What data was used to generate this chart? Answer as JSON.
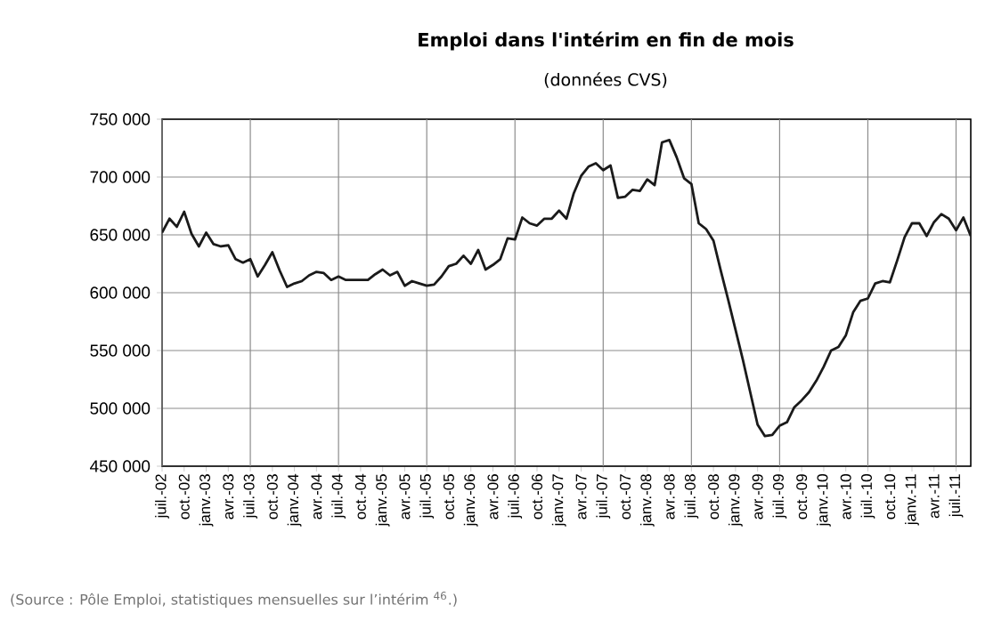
{
  "chart_data": {
    "type": "line",
    "title": "Emploi dans l'intérim en fin de mois",
    "subtitle": "(données CVS)",
    "annotations": [
      "(Source : Pôle Emploi, statistiques mensuelles sur l’intérim $^{46}$.)"
    ],
    "categories": [
      "juil.-02",
      null,
      null,
      "oct.-02",
      null,
      null,
      "janv.-03",
      null,
      null,
      "avr.-03",
      null,
      null,
      "juil.-03",
      null,
      null,
      "oct.-03",
      null,
      null,
      "janv.-04",
      null,
      null,
      "avr.-04",
      null,
      null,
      "juil.-04",
      null,
      null,
      "oct.-04",
      null,
      null,
      "janv.-05",
      null,
      null,
      "avr.-05",
      null,
      null,
      "juil.-05",
      null,
      null,
      "oct.-05",
      null,
      null,
      "janv.-06",
      null,
      null,
      "avr.-06",
      null,
      null,
      "juil.-06",
      null,
      null,
      "oct.-06",
      null,
      null,
      "janv.-07",
      null,
      null,
      "avr.-07",
      null,
      null,
      "juil.-07",
      null,
      null,
      "oct.-07",
      null,
      null,
      "janv.-08",
      null,
      null,
      "avr.-08",
      null,
      null,
      "juil.-08",
      null,
      null,
      "oct.-08",
      null,
      null,
      "janv.-09",
      null,
      null,
      "avr.-09",
      null,
      null,
      "juil.-09",
      null,
      null,
      "oct.-09",
      null,
      null,
      "janv.-10",
      null,
      null,
      "avr.-10",
      null,
      null,
      "juil.-10",
      null,
      null,
      "oct.-10",
      null,
      null,
      "janv.-11",
      null,
      null,
      "avr.-11",
      null,
      null,
      "juil.-11",
      null,
      null
    ],
    "series": [
      {
        "color": "#1a1a1a",
        "values": [
          652000,
          664000,
          657000,
          670000,
          651000,
          640000,
          652000,
          642000,
          640000,
          641000,
          629000,
          626000,
          629000,
          614000,
          624000,
          635000,
          619000,
          605000,
          608000,
          610000,
          615000,
          618000,
          617000,
          611000,
          614000,
          611000,
          611000,
          611000,
          611000,
          616000,
          620000,
          615000,
          618000,
          606000,
          610000,
          608000,
          606000,
          607000,
          614000,
          623000,
          625000,
          632000,
          625000,
          637000,
          620000,
          624000,
          629000,
          647000,
          646000,
          665000,
          660000,
          658000,
          664000,
          664000,
          671000,
          664000,
          686000,
          701000,
          709000,
          712000,
          706000,
          710000,
          682000,
          683000,
          689000,
          688000,
          698000,
          693000,
          730000,
          732000,
          717000,
          699000,
          694000,
          660000,
          655000,
          645000,
          619000,
          594000,
          568000,
          542000,
          514000,
          486000,
          476000,
          477000,
          485000,
          488000,
          501000,
          507000,
          514000,
          524000,
          536000,
          550000,
          553000,
          563000,
          583000,
          593000,
          595000,
          608000,
          610000,
          609000,
          628000,
          648000,
          660000,
          660000,
          649000,
          661000,
          668000,
          664000,
          654000,
          665000,
          649000
        ]
      }
    ],
    "ylim": [
      450000,
      750000
    ],
    "yticks": [
      {
        "value": 450000,
        "label": "450 000"
      },
      {
        "value": 500000,
        "label": "500 000"
      },
      {
        "value": 550000,
        "label": "550 000"
      },
      {
        "value": 600000,
        "label": "600 000"
      },
      {
        "value": 650000,
        "label": "650 000"
      },
      {
        "value": 700000,
        "label": "700 000"
      },
      {
        "value": 750000,
        "label": "750 000"
      }
    ],
    "grid": true,
    "marker": "none",
    "line_style": "solid"
  }
}
